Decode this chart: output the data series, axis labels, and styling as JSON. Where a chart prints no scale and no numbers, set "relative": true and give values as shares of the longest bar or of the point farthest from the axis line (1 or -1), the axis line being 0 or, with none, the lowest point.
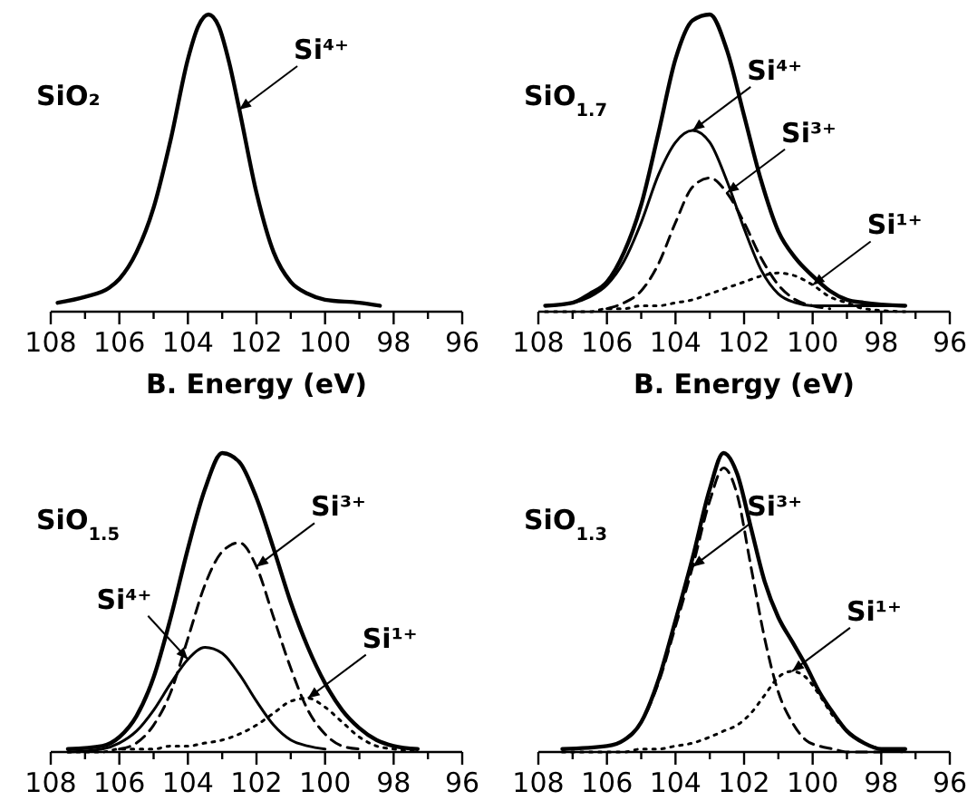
{
  "chart_data": [
    {
      "type": "line",
      "relative": true,
      "xlabel": "B. Energy (eV)",
      "xlim": [
        108,
        96
      ],
      "xticks": [
        108,
        {
          "value": 107,
          "label": null
        },
        106,
        {
          "value": 105,
          "label": null
        },
        104,
        {
          "value": 103,
          "label": null
        },
        102,
        {
          "value": 101,
          "label": null
        },
        100,
        {
          "value": 99,
          "label": null
        },
        98,
        {
          "value": 97,
          "label": null
        },
        96
      ],
      "x": [
        107.8,
        107,
        106.3,
        106,
        105.5,
        105,
        104.5,
        104,
        103.7,
        103.4,
        103.1,
        102.8,
        102.5,
        102,
        101.5,
        101,
        100.5,
        100,
        99,
        98.4
      ],
      "series": [
        {
          "color": "#000000",
          "line_style": "solid",
          "values": [
            0.03,
            0.05,
            0.08,
            0.11,
            0.2,
            0.35,
            0.58,
            0.85,
            0.96,
            1,
            0.96,
            0.84,
            0.68,
            0.4,
            0.2,
            0.1,
            0.06,
            0.04,
            0.03,
            0.02
          ]
        }
      ],
      "annotations": [
        "SiO₂",
        {
          "text": "Si⁴⁺",
          "x": 102.5,
          "y": 0.68
        }
      ]
    },
    {
      "type": "line",
      "relative": true,
      "xlabel": "B. Energy (eV)",
      "xlim": [
        108,
        96
      ],
      "xticks": [
        108,
        {
          "value": 107,
          "label": null
        },
        106,
        {
          "value": 105,
          "label": null
        },
        104,
        {
          "value": 103,
          "label": null
        },
        102,
        {
          "value": 101,
          "label": null
        },
        100,
        {
          "value": 99,
          "label": null
        },
        98,
        {
          "value": 97,
          "label": null
        },
        96
      ],
      "x": [
        107.8,
        107,
        106.5,
        106,
        105.5,
        105,
        104.5,
        104,
        103.5,
        103,
        102.5,
        102,
        101.5,
        101,
        100.5,
        100,
        99.5,
        99,
        98.5,
        97.3
      ],
      "series": [
        {
          "color": "#000000",
          "line_style": "solid",
          "values": [
            0.02,
            0.03,
            0.06,
            0.1,
            0.2,
            0.36,
            0.6,
            0.85,
            0.98,
            1,
            0.88,
            0.66,
            0.44,
            0.27,
            0.18,
            0.12,
            0.07,
            0.04,
            0.03,
            0.02
          ]
        },
        {
          "color": "#000000",
          "line_style": "solid",
          "values": [
            0.02,
            0.03,
            0.05,
            0.09,
            0.17,
            0.3,
            0.46,
            0.57,
            0.61,
            0.57,
            0.44,
            0.28,
            0.14,
            0.06,
            0.03,
            0.02,
            0.02,
            0.02,
            0.02,
            0.02
          ]
        },
        {
          "color": "#000000",
          "line_style": "dashed",
          "values": [
            null,
            null,
            null,
            0.01,
            0.03,
            0.07,
            0.16,
            0.3,
            0.42,
            0.45,
            0.4,
            0.3,
            0.18,
            0.09,
            0.04,
            0.02,
            0.01,
            null,
            null,
            null
          ]
        },
        {
          "color": "#000000",
          "line_style": "dotted",
          "values": [
            0,
            0,
            0,
            0.01,
            0.01,
            0.02,
            0.02,
            0.03,
            0.04,
            0.06,
            0.08,
            0.1,
            0.12,
            0.13,
            0.12,
            0.09,
            0.05,
            0.03,
            0.01,
            0
          ]
        }
      ],
      "annotations": [
        "SiO$_{1.7}$",
        {
          "text": "Si⁴⁺",
          "x": 103.5,
          "y": 0.61
        },
        {
          "text": "Si³⁺",
          "x": 102.5,
          "y": 0.4
        },
        {
          "text": "Si¹⁺",
          "x": 100,
          "y": 0.09
        }
      ]
    },
    {
      "type": "line",
      "relative": true,
      "xlim": [
        108,
        96
      ],
      "xticks": [
        108,
        {
          "value": 107,
          "label": null
        },
        106,
        {
          "value": 105,
          "label": null
        },
        104,
        {
          "value": 103,
          "label": null
        },
        102,
        {
          "value": 101,
          "label": null
        },
        100,
        {
          "value": 99,
          "label": null
        },
        98,
        {
          "value": 97,
          "label": null
        },
        96
      ],
      "x": [
        107.5,
        106.5,
        106,
        105.5,
        105,
        104.5,
        104,
        103.5,
        103,
        102.5,
        102,
        101.5,
        101,
        100.5,
        100,
        99.5,
        99,
        98.5,
        98,
        97.3
      ],
      "series": [
        {
          "color": "#000000",
          "line_style": "solid",
          "values": [
            0.01,
            0.02,
            0.05,
            0.12,
            0.25,
            0.45,
            0.68,
            0.88,
            1,
            0.97,
            0.85,
            0.68,
            0.5,
            0.35,
            0.23,
            0.14,
            0.08,
            0.04,
            0.02,
            0.01
          ]
        },
        {
          "color": "#000000",
          "line_style": "solid",
          "values": [
            0,
            0.01,
            0.03,
            0.07,
            0.14,
            0.23,
            0.31,
            0.35,
            0.33,
            0.26,
            0.17,
            0.09,
            0.04,
            0.02,
            0.01,
            null,
            null,
            null,
            null,
            null
          ]
        },
        {
          "color": "#000000",
          "line_style": "dashed",
          "values": [
            null,
            null,
            0.01,
            0.03,
            0.09,
            0.2,
            0.38,
            0.56,
            0.67,
            0.7,
            0.62,
            0.45,
            0.28,
            0.14,
            0.06,
            0.02,
            0.01,
            null,
            null,
            null
          ]
        },
        {
          "color": "#000000",
          "line_style": "dotted",
          "values": [
            0,
            0,
            0.01,
            0.01,
            0.01,
            0.02,
            0.02,
            0.03,
            0.04,
            0.06,
            0.09,
            0.13,
            0.17,
            0.18,
            0.15,
            0.1,
            0.05,
            0.02,
            0.01,
            0
          ]
        }
      ],
      "annotations": [
        "SiO$_{1.5}$",
        {
          "text": "Si³⁺",
          "x": 102,
          "y": 0.62
        },
        {
          "text": "Si⁴⁺",
          "x": 104,
          "y": 0.31
        },
        {
          "text": "Si¹⁺",
          "x": 100.5,
          "y": 0.18
        }
      ]
    },
    {
      "type": "line",
      "relative": true,
      "xlim": [
        108,
        96
      ],
      "xticks": [
        108,
        {
          "value": 107,
          "label": null
        },
        106,
        {
          "value": 105,
          "label": null
        },
        104,
        {
          "value": 103,
          "label": null
        },
        102,
        {
          "value": 101,
          "label": null
        },
        100,
        {
          "value": 99,
          "label": null
        },
        98,
        {
          "value": 97,
          "label": null
        },
        96
      ],
      "x": [
        107.3,
        106,
        105.5,
        105,
        104.5,
        104,
        103.5,
        103,
        102.6,
        102.2,
        101.8,
        101.4,
        101,
        100.6,
        100.2,
        99.8,
        99.4,
        99,
        98.5,
        98,
        97.3
      ],
      "series": [
        {
          "color": "#000000",
          "line_style": "solid",
          "values": [
            0.01,
            0.02,
            0.04,
            0.1,
            0.24,
            0.44,
            0.65,
            0.88,
            1,
            0.93,
            0.75,
            0.57,
            0.45,
            0.37,
            0.29,
            0.2,
            0.13,
            0.07,
            0.03,
            0.01,
            0.01
          ]
        },
        {
          "color": "#000000",
          "line_style": "dashed",
          "values": [
            null,
            null,
            0.04,
            0.1,
            0.23,
            0.42,
            0.62,
            0.84,
            0.95,
            0.86,
            0.62,
            0.38,
            0.2,
            0.1,
            0.04,
            0.02,
            0.01,
            0,
            0,
            0,
            null
          ]
        },
        {
          "color": "#000000",
          "line_style": "dotted",
          "values": [
            0,
            0,
            0,
            0.01,
            0.01,
            0.02,
            0.03,
            0.05,
            0.07,
            0.09,
            0.13,
            0.19,
            0.25,
            0.27,
            0.25,
            0.19,
            0.12,
            0.07,
            0.03,
            0.01,
            0
          ]
        }
      ],
      "annotations": [
        "SiO$_{1.3}$",
        {
          "text": "Si³⁺",
          "x": 103.5,
          "y": 0.62
        },
        {
          "text": "Si¹⁺",
          "x": 100.6,
          "y": 0.27
        }
      ]
    }
  ]
}
